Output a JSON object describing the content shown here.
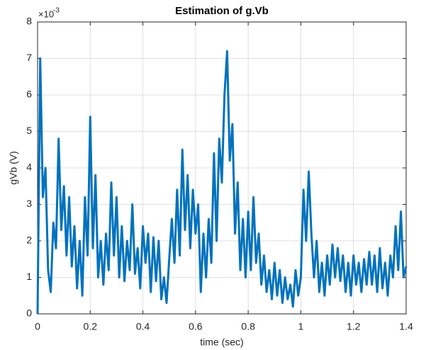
{
  "chart_data": {
    "type": "line",
    "title": "Estimation of g.Vb",
    "x_label": "time (sec)",
    "y_label": "gVb (V)",
    "y_multiplier": "×10",
    "y_multiplier_exponent": "-3",
    "xlim": [
      0,
      1.4
    ],
    "xticks": [
      0,
      0.2,
      0.4,
      0.6,
      0.8,
      1,
      1.2,
      1.4
    ],
    "ylim": [
      0,
      8
    ],
    "yticks": [
      0,
      1,
      2,
      3,
      4,
      5,
      6,
      7,
      8
    ],
    "grid": true,
    "x": [
      0,
      0.01,
      0.02,
      0.03,
      0.04,
      0.05,
      0.06,
      0.07,
      0.08,
      0.09,
      0.1,
      0.11,
      0.12,
      0.13,
      0.14,
      0.15,
      0.16,
      0.17,
      0.18,
      0.19,
      0.2,
      0.21,
      0.22,
      0.23,
      0.24,
      0.25,
      0.26,
      0.27,
      0.28,
      0.29,
      0.3,
      0.31,
      0.32,
      0.33,
      0.34,
      0.35,
      0.36,
      0.37,
      0.38,
      0.39,
      0.4,
      0.41,
      0.42,
      0.43,
      0.44,
      0.45,
      0.46,
      0.47,
      0.48,
      0.49,
      0.5,
      0.51,
      0.52,
      0.53,
      0.54,
      0.55,
      0.56,
      0.57,
      0.58,
      0.59,
      0.6,
      0.61,
      0.62,
      0.63,
      0.64,
      0.65,
      0.66,
      0.67,
      0.68,
      0.69,
      0.7,
      0.71,
      0.72,
      0.73,
      0.74,
      0.75,
      0.76,
      0.77,
      0.78,
      0.79,
      0.8,
      0.81,
      0.82,
      0.83,
      0.84,
      0.85,
      0.86,
      0.87,
      0.88,
      0.89,
      0.9,
      0.91,
      0.92,
      0.93,
      0.94,
      0.95,
      0.96,
      0.97,
      0.98,
      0.99,
      1,
      1.01,
      1.02,
      1.03,
      1.04,
      1.05,
      1.06,
      1.07,
      1.08,
      1.09,
      1.1,
      1.11,
      1.12,
      1.13,
      1.14,
      1.15,
      1.16,
      1.17,
      1.18,
      1.19,
      1.2,
      1.21,
      1.22,
      1.23,
      1.24,
      1.25,
      1.26,
      1.27,
      1.28,
      1.29,
      1.3,
      1.31,
      1.32,
      1.33,
      1.34,
      1.35,
      1.36,
      1.37,
      1.38,
      1.39,
      1.4
    ],
    "series": [
      {
        "color": "#0072bd",
        "values": [
          0,
          7.0,
          3.2,
          4.0,
          1.2,
          0.6,
          2.5,
          1.8,
          4.8,
          2.3,
          3.5,
          1.6,
          3.2,
          1.3,
          2.4,
          0.7,
          2.0,
          0.5,
          3.2,
          1.6,
          5.4,
          1.8,
          3.8,
          1.0,
          2.0,
          0.8,
          2.2,
          1.2,
          3.6,
          1.6,
          3.2,
          1.0,
          2.4,
          0.9,
          2.0,
          1.2,
          3.0,
          1.1,
          1.8,
          0.7,
          2.4,
          1.4,
          2.2,
          0.6,
          2.1,
          0.9,
          2.0,
          0.4,
          1.0,
          0.3,
          1.5,
          2.6,
          1.4,
          3.4,
          1.6,
          4.5,
          2.3,
          3.8,
          1.8,
          3.4,
          2.2,
          3.0,
          0.6,
          2.2,
          1.0,
          2.6,
          1.4,
          4.4,
          2.0,
          4.8,
          3.6,
          6.0,
          7.2,
          4.2,
          5.2,
          2.2,
          3.6,
          1.2,
          2.6,
          1.0,
          2.8,
          1.2,
          3.2,
          1.4,
          2.2,
          0.8,
          1.6,
          0.6,
          1.2,
          0.4,
          1.4,
          0.5,
          1.2,
          0.3,
          1.0,
          0.4,
          0.8,
          0.2,
          1.2,
          0.5,
          1.0,
          3.4,
          2.0,
          3.9,
          2.2,
          1.0,
          2.0,
          0.6,
          1.4,
          0.5,
          1.6,
          0.8,
          1.9,
          1.0,
          1.8,
          0.9,
          1.6,
          0.6,
          1.4,
          0.5,
          1.6,
          0.8,
          1.4,
          0.6,
          1.5,
          0.8,
          1.7,
          0.8,
          1.6,
          0.6,
          1.8,
          0.7,
          1.4,
          0.5,
          1.6,
          1.0,
          2.4,
          1.2,
          2.8,
          1.0,
          1.3
        ]
      }
    ]
  }
}
